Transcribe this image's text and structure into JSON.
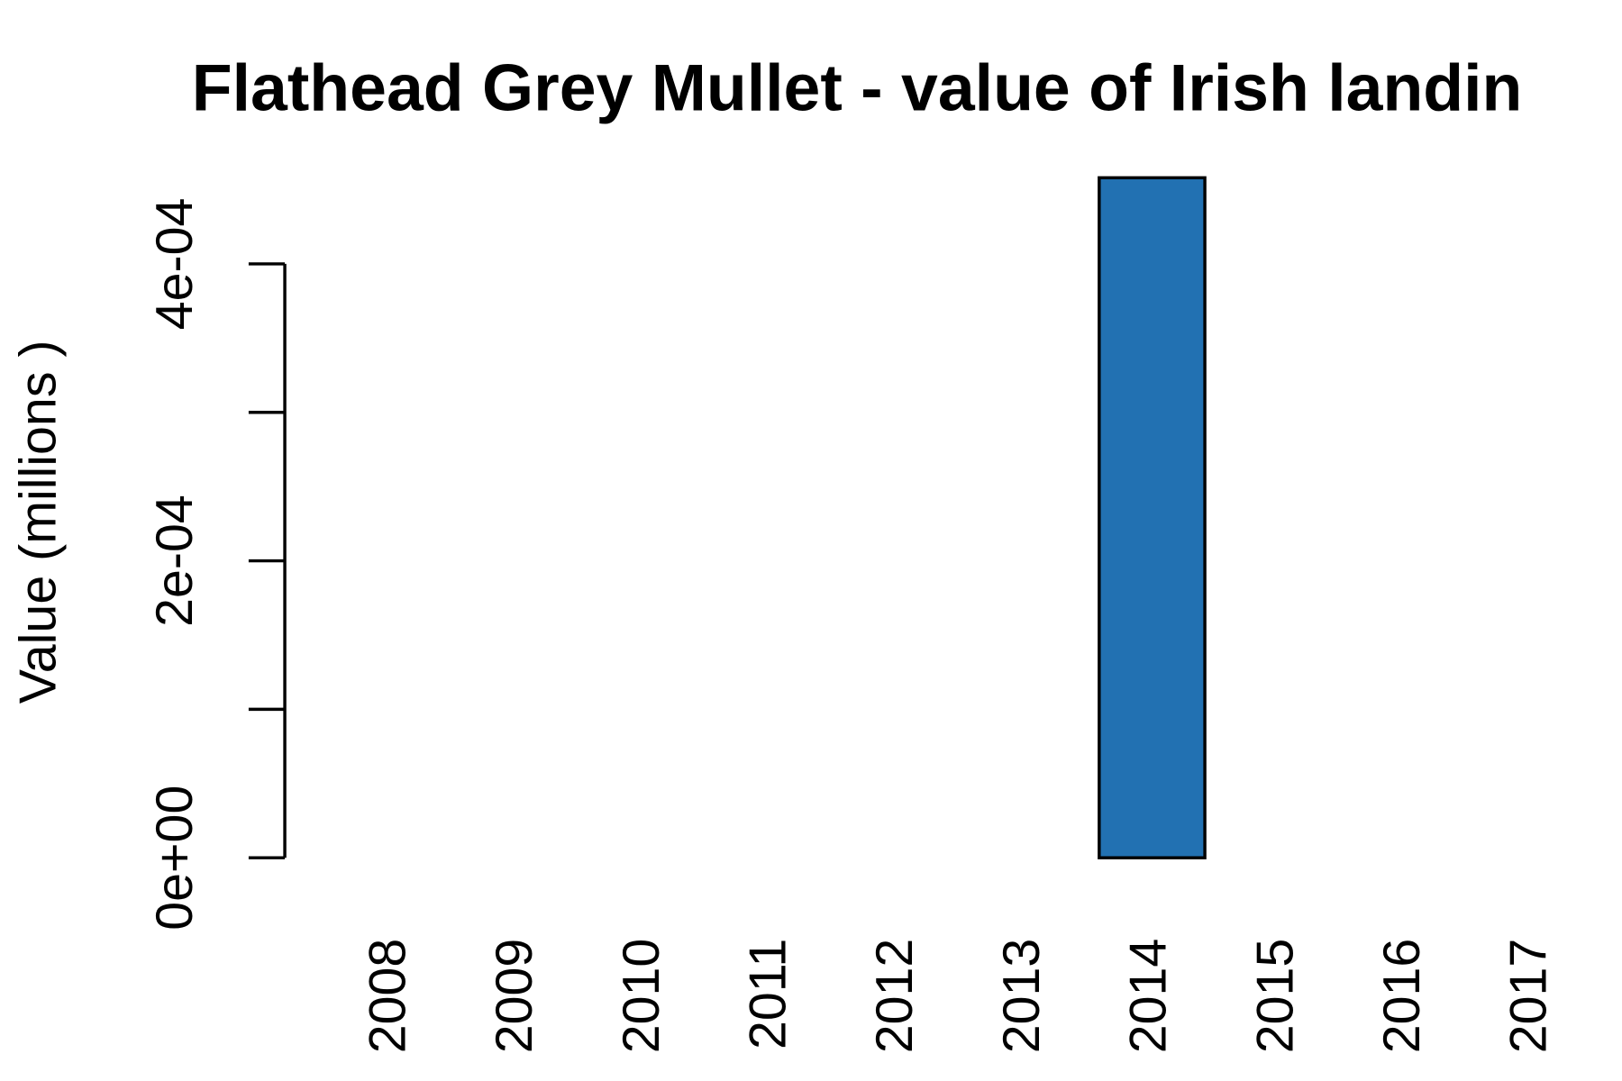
{
  "chart_data": {
    "type": "bar",
    "title": "Flathead Grey Mullet - value of Irish landin",
    "y_label": "Value (millions )",
    "categories": [
      "2008",
      "2009",
      "2010",
      "2011",
      "2012",
      "2013",
      "2014",
      "2015",
      "2016",
      "2017"
    ],
    "values": [
      0,
      0,
      0,
      0,
      0,
      0,
      0.000458,
      0,
      0,
      0
    ],
    "color": "#2271b2",
    "ylim": [
      0,
      0.000458
    ],
    "yticks": [
      {
        "value": 0,
        "label": "0e+00"
      },
      0.0001,
      {
        "value": 0.0002,
        "label": "2e-04"
      },
      0.0003,
      {
        "value": 0.0004,
        "label": "4e-04"
      }
    ],
    "grid": false
  }
}
